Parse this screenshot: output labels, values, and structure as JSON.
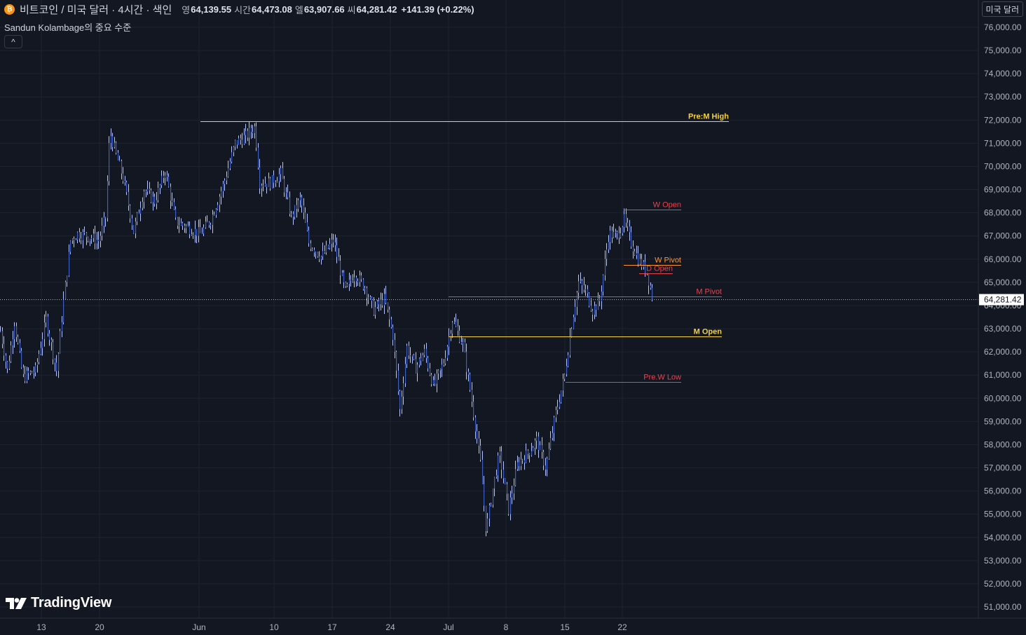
{
  "header": {
    "coin_icon": "bitcoin-icon",
    "coin_glyph": "₿",
    "symbol_title": "비트코인 / 미국 달러 · 4시간 · 색인",
    "ohlc": [
      {
        "label": "영",
        "value": "64,139.55"
      },
      {
        "label": "시간",
        "value": "64,473.08"
      },
      {
        "label": "엘",
        "value": "63,907.66"
      },
      {
        "label": "씨",
        "value": "64,281.42"
      }
    ],
    "change": "+141.39 (+0.22%)"
  },
  "indicator": {
    "name": "Sandun Kolambage의 중요 수준",
    "collapse_icon": "chevron-up-icon",
    "collapse_glyph": "^"
  },
  "currency_button": "미국 달러",
  "logo": {
    "icon": "tradingview-logo-icon",
    "text": "TradingView"
  },
  "colors": {
    "background": "#131722",
    "grid": "#1f2330",
    "candle": "#3d5fc4",
    "wick": "#b8c4ff",
    "yellow": "#f5d23c",
    "red": "#e5454f",
    "orange": "#ff9533"
  },
  "chart_data": {
    "type": "ohlc",
    "y_range": [
      50600,
      76500
    ],
    "y_ticks": [
      "76,000.00",
      "75,000.00",
      "74,000.00",
      "73,000.00",
      "72,000.00",
      "71,000.00",
      "70,000.00",
      "69,000.00",
      "68,000.00",
      "67,000.00",
      "66,000.00",
      "65,000.00",
      "64,000.00",
      "63,000.00",
      "62,000.00",
      "61,000.00",
      "60,000.00",
      "59,000.00",
      "58,000.00",
      "57,000.00",
      "56,000.00",
      "55,000.00",
      "54,000.00",
      "53,000.00",
      "52,000.00",
      "51,000.00"
    ],
    "x_ticks": [
      "13",
      "20",
      "Jun",
      "10",
      "17",
      "24",
      "Jul",
      "8",
      "15",
      "22"
    ],
    "last_price": "64,281.42",
    "price_path": [
      {
        "t": 0,
        "p": 62900
      },
      {
        "t": 10,
        "p": 61200
      },
      {
        "t": 20,
        "p": 63300
      },
      {
        "t": 32,
        "p": 60900
      },
      {
        "t": 50,
        "p": 61200
      },
      {
        "t": 65,
        "p": 63400
      },
      {
        "t": 80,
        "p": 61200
      },
      {
        "t": 90,
        "p": 64200
      },
      {
        "t": 100,
        "p": 66800
      },
      {
        "t": 110,
        "p": 67100
      },
      {
        "t": 125,
        "p": 67000
      },
      {
        "t": 140,
        "p": 66800
      },
      {
        "t": 150,
        "p": 67800
      },
      {
        "t": 156,
        "p": 71500
      },
      {
        "t": 165,
        "p": 70500
      },
      {
        "t": 175,
        "p": 69500
      },
      {
        "t": 190,
        "p": 67200
      },
      {
        "t": 205,
        "p": 69000
      },
      {
        "t": 220,
        "p": 68500
      },
      {
        "t": 235,
        "p": 69800
      },
      {
        "t": 250,
        "p": 67600
      },
      {
        "t": 265,
        "p": 67400
      },
      {
        "t": 285,
        "p": 67100
      },
      {
        "t": 300,
        "p": 67700
      },
      {
        "t": 318,
        "p": 69200
      },
      {
        "t": 335,
        "p": 71000
      },
      {
        "t": 350,
        "p": 71300
      },
      {
        "t": 363,
        "p": 71700
      },
      {
        "t": 370,
        "p": 69300
      },
      {
        "t": 385,
        "p": 69300
      },
      {
        "t": 400,
        "p": 69700
      },
      {
        "t": 415,
        "p": 67800
      },
      {
        "t": 428,
        "p": 68600
      },
      {
        "t": 440,
        "p": 66700
      },
      {
        "t": 458,
        "p": 66100
      },
      {
        "t": 475,
        "p": 66800
      },
      {
        "t": 492,
        "p": 64600
      },
      {
        "t": 505,
        "p": 65400
      },
      {
        "t": 520,
        "p": 64800
      },
      {
        "t": 532,
        "p": 63800
      },
      {
        "t": 548,
        "p": 64300
      },
      {
        "t": 560,
        "p": 62700
      },
      {
        "t": 570,
        "p": 59500
      },
      {
        "t": 580,
        "p": 62200
      },
      {
        "t": 592,
        "p": 61300
      },
      {
        "t": 605,
        "p": 62000
      },
      {
        "t": 618,
        "p": 60500
      },
      {
        "t": 632,
        "p": 61500
      },
      {
        "t": 645,
        "p": 63400
      },
      {
        "t": 660,
        "p": 62300
      },
      {
        "t": 672,
        "p": 60000
      },
      {
        "t": 685,
        "p": 57200
      },
      {
        "t": 693,
        "p": 54300
      },
      {
        "t": 703,
        "p": 56200
      },
      {
        "t": 712,
        "p": 57600
      },
      {
        "t": 725,
        "p": 55200
      },
      {
        "t": 738,
        "p": 57200
      },
      {
        "t": 752,
        "p": 57600
      },
      {
        "t": 765,
        "p": 58200
      },
      {
        "t": 778,
        "p": 57000
      },
      {
        "t": 792,
        "p": 59300
      },
      {
        "t": 805,
        "p": 61000
      },
      {
        "t": 815,
        "p": 63200
      },
      {
        "t": 825,
        "p": 65000
      },
      {
        "t": 835,
        "p": 64600
      },
      {
        "t": 845,
        "p": 63800
      },
      {
        "t": 855,
        "p": 64200
      },
      {
        "t": 868,
        "p": 67100
      },
      {
        "t": 880,
        "p": 67000
      },
      {
        "t": 890,
        "p": 67700
      },
      {
        "t": 900,
        "p": 66700
      },
      {
        "t": 912,
        "p": 65900
      },
      {
        "t": 922,
        "p": 65500
      },
      {
        "t": 931,
        "p": 64281
      }
    ],
    "levels": [
      {
        "name": "Pre:M High",
        "price": 71950,
        "t_start": 286,
        "t_end": 1040,
        "color": "#f5d23c",
        "bold": true
      },
      {
        "name": "W Open",
        "price": 68130,
        "t_start": 890,
        "t_end": 972,
        "color": "#e5454f",
        "bold": false
      },
      {
        "name": "W Pivot",
        "price": 65750,
        "t_start": 890,
        "t_end": 972,
        "color": "#ff9533",
        "bold": false
      },
      {
        "name": "D Open",
        "price": 65380,
        "t_start": 912,
        "t_end": 960,
        "color": "#e5454f",
        "bold": false
      },
      {
        "name": "M Pivot",
        "price": 64380,
        "t_start": 640,
        "t_end": 1030,
        "color": "#e5454f",
        "bold": false
      },
      {
        "name": "M Open",
        "price": 62680,
        "t_start": 640,
        "t_end": 1030,
        "color": "#f5d23c",
        "bold": true
      },
      {
        "name": "Pre.W Low",
        "price": 60700,
        "t_start": 807,
        "t_end": 972,
        "color": "#e5454f",
        "bold": false
      }
    ]
  }
}
